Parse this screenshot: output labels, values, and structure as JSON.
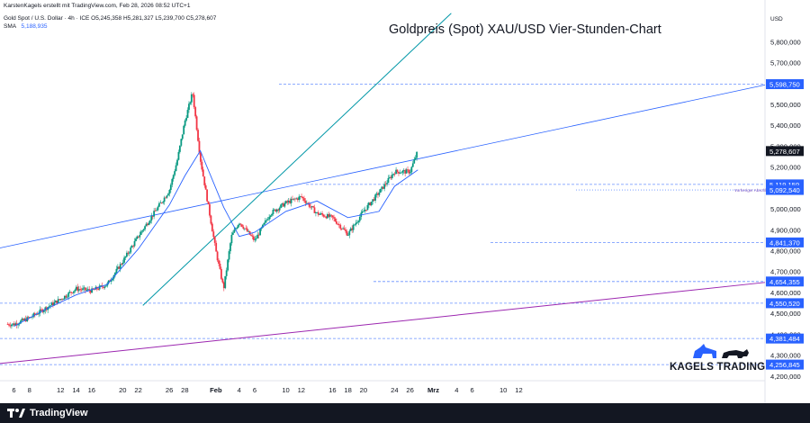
{
  "header": {
    "line1": "KarstenKagels erstellt mit TradingView.com, Feb 28, 2026 08:52 UTC+1",
    "line2": "Gold Spot / U.S. Dollar · 4h · ICE  O5,245,358 H5,281,327 L5,239,700 C5,278,607",
    "sma_label": "SMA",
    "sma_value": "5,188,935"
  },
  "chart_data": {
    "type": "line",
    "title": "Goldpreis (Spot) XAU/USD Vier-Stunden-Chart",
    "currency": "USD",
    "y_axis_ticks": [
      "5,800,000",
      "5,700,000",
      "5,600,000",
      "5,500,000",
      "5,400,000",
      "5,300,000",
      "5,200,000",
      "5,100,000",
      "5,000,000",
      "4,900,000",
      "4,800,000",
      "4,700,000",
      "4,600,000",
      "4,500,000",
      "4,400,000",
      "4,300,000",
      "4,200,000"
    ],
    "ylim": [
      4180000,
      5900000
    ],
    "x_axis_ticks": [
      "6",
      "8",
      "12",
      "14",
      "16",
      "20",
      "22",
      "26",
      "28",
      "Feb",
      "4",
      "6",
      "10",
      "12",
      "16",
      "18",
      "20",
      "24",
      "26",
      "Mrz",
      "4",
      "6",
      "10",
      "12"
    ],
    "series": [
      {
        "name": "Gold Spot / U.S. Dollar · 4h",
        "x": [
          "Jan 6",
          "Jan 8",
          "Jan 12",
          "Jan 14",
          "Jan 16",
          "Jan 18",
          "Jan 20",
          "Jan 22",
          "Jan 24",
          "Jan 26",
          "Jan 27",
          "Jan 28",
          "Jan 29",
          "Jan 30",
          "Feb 1",
          "Feb 2",
          "Feb 3",
          "Feb 4",
          "Feb 6",
          "Feb 8",
          "Feb 10",
          "Feb 12",
          "Feb 14",
          "Feb 16",
          "Feb 18",
          "Feb 20",
          "Feb 22",
          "Feb 24",
          "Feb 26",
          "Feb 27"
        ],
        "values": [
          4450000,
          4480000,
          4570000,
          4620000,
          4610000,
          4640000,
          4750000,
          4870000,
          4980000,
          5090000,
          5230000,
          5420000,
          5560000,
          5240000,
          4800000,
          4620000,
          4870000,
          4940000,
          4850000,
          4980000,
          5030000,
          5060000,
          4980000,
          4960000,
          4880000,
          4990000,
          5080000,
          5180000,
          5180000,
          5278607
        ]
      },
      {
        "name": "SMA",
        "x": [
          "Jan 6",
          "Jan 10",
          "Jan 14",
          "Jan 18",
          "Jan 22",
          "Jan 26",
          "Jan 28",
          "Jan 30",
          "Feb 2",
          "Feb 4",
          "Feb 6",
          "Feb 10",
          "Feb 14",
          "Feb 18",
          "Feb 22",
          "Feb 24",
          "Feb 27"
        ],
        "values": [
          4440000,
          4520000,
          4590000,
          4640000,
          4810000,
          5020000,
          5160000,
          5280000,
          5010000,
          4870000,
          4890000,
          4990000,
          5040000,
          4960000,
          4990000,
          5110000,
          5188935
        ]
      }
    ],
    "price_labels": [
      {
        "text": "5,598,750",
        "kind": "level"
      },
      {
        "text": "5,278,607",
        "kind": "current"
      },
      {
        "text": "5,119,159",
        "kind": "level"
      },
      {
        "text": "5,092,540",
        "kind": "previous-close"
      },
      {
        "text": "4,841,370",
        "kind": "level"
      },
      {
        "text": "4,654,355",
        "kind": "level"
      },
      {
        "text": "4,550,520",
        "kind": "level"
      },
      {
        "text": "4,381,484",
        "kind": "level"
      },
      {
        "text": "4,256,845",
        "kind": "level"
      }
    ],
    "previous_close_label": "Vorheriger Abschluss",
    "grid": false,
    "colors": {
      "up": "#089981",
      "down": "#f23645",
      "sma": "#2962ff",
      "level_line": "#2962ff",
      "upper_trend": "#2962ff",
      "steep_trend": "#0097a7",
      "lower_trend": "#9c27b0",
      "current_label": "#131722",
      "level_label_bg": "#2962ff"
    }
  },
  "branding": {
    "watermark": "KAGELS TRADING",
    "footer_logo": "TradingView"
  }
}
